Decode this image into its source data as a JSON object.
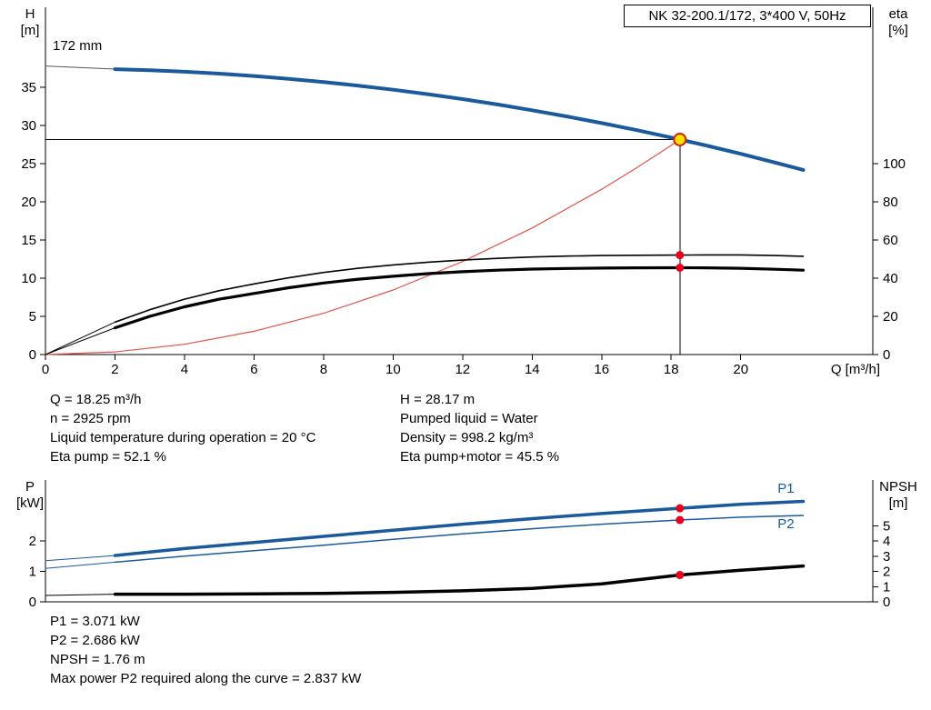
{
  "title_box": "NK 32-200.1/172, 3*400 V, 50Hz",
  "colors": {
    "blue": "#1a5a9c",
    "red_curve": "#e05548",
    "red_dot": "#e8001c",
    "yellow": "#ffe000",
    "op_ring": "#cc2200",
    "black": "#000000",
    "lead_gray": "#555555"
  },
  "chart_data": [
    {
      "id": "qh-eta-chart",
      "type": "line",
      "x_axis": {
        "title": "Q [m³/h]",
        "min": 0,
        "max": 23.8,
        "ticks": [
          0,
          2,
          4,
          6,
          8,
          10,
          12,
          14,
          16,
          18,
          20
        ]
      },
      "left_axis": {
        "title": [
          "H",
          "[m]"
        ],
        "min": 0,
        "max": 45.5,
        "ticks": [
          0,
          5,
          10,
          15,
          20,
          25,
          30,
          35
        ]
      },
      "right_axis": {
        "title": [
          "eta",
          "[%]"
        ],
        "min": 0,
        "max": 182,
        "ticks": [
          0,
          20,
          40,
          60,
          80,
          100
        ]
      },
      "impeller_label": "172 mm",
      "series": [
        {
          "name": "impeller-lead",
          "axis": "left",
          "color": "lead_gray",
          "width": 1,
          "points": [
            [
              0,
              37.8
            ],
            [
              2,
              37.4
            ]
          ]
        },
        {
          "name": "head-curve",
          "axis": "left",
          "color": "blue",
          "width": 4,
          "points": [
            [
              2,
              37.39
            ],
            [
              3,
              37.25
            ],
            [
              4,
              37.05
            ],
            [
              5,
              36.8
            ],
            [
              6,
              36.49
            ],
            [
              7,
              36.13
            ],
            [
              8,
              35.71
            ],
            [
              9,
              35.23
            ],
            [
              10,
              34.7
            ],
            [
              11,
              34.11
            ],
            [
              12,
              33.47
            ],
            [
              13,
              32.77
            ],
            [
              14,
              32.01
            ],
            [
              15,
              31.2
            ],
            [
              16,
              30.33
            ],
            [
              17,
              29.41
            ],
            [
              18,
              28.43
            ],
            [
              18.25,
              28.17
            ],
            [
              19,
              27.39
            ],
            [
              20,
              26.3
            ],
            [
              21,
              25.15
            ],
            [
              21.8,
              24.19
            ]
          ]
        },
        {
          "name": "system-curve",
          "axis": "left",
          "color": "red_curve",
          "width": 1.2,
          "points": [
            [
              0,
              0
            ],
            [
              2,
              0.34
            ],
            [
              4,
              1.35
            ],
            [
              6,
              3.05
            ],
            [
              8,
              5.41
            ],
            [
              10,
              8.46
            ],
            [
              12,
              12.18
            ],
            [
              14,
              16.58
            ],
            [
              16,
              21.65
            ],
            [
              17,
              24.44
            ],
            [
              18,
              27.4
            ],
            [
              18.25,
              28.17
            ]
          ]
        },
        {
          "name": "eta-pump-lead",
          "axis": "right",
          "color": "black",
          "width": 1,
          "points": [
            [
              0,
              0
            ],
            [
              2,
              17
            ]
          ]
        },
        {
          "name": "eta-pump-curve",
          "axis": "right",
          "color": "black",
          "width": 1.6,
          "points": [
            [
              2,
              17
            ],
            [
              3,
              23.5
            ],
            [
              4,
              29
            ],
            [
              5,
              33.5
            ],
            [
              6,
              37
            ],
            [
              7,
              40.2
            ],
            [
              8,
              43
            ],
            [
              9,
              45.2
            ],
            [
              10,
              47
            ],
            [
              11,
              48.4
            ],
            [
              12,
              49.5
            ],
            [
              13,
              50.4
            ],
            [
              14,
              51.1
            ],
            [
              15,
              51.6
            ],
            [
              16,
              51.9
            ],
            [
              17,
              52.05
            ],
            [
              18.25,
              52.1
            ],
            [
              19,
              52.2
            ],
            [
              20,
              52.2
            ],
            [
              21,
              51.9
            ],
            [
              21.8,
              51.5
            ]
          ]
        },
        {
          "name": "eta-pump-motor-lead",
          "axis": "right",
          "color": "black",
          "width": 1,
          "points": [
            [
              0,
              0
            ],
            [
              2,
              14
            ]
          ]
        },
        {
          "name": "eta-pump-motor-curve",
          "axis": "right",
          "color": "black",
          "width": 3.2,
          "points": [
            [
              2,
              14
            ],
            [
              3,
              20
            ],
            [
              4,
              25
            ],
            [
              5,
              29
            ],
            [
              6,
              32
            ],
            [
              7,
              35
            ],
            [
              8,
              37.5
            ],
            [
              9,
              39.5
            ],
            [
              10,
              41
            ],
            [
              11,
              42.4
            ],
            [
              12,
              43.4
            ],
            [
              13,
              44.2
            ],
            [
              14,
              44.8
            ],
            [
              15,
              45.1
            ],
            [
              16,
              45.3
            ],
            [
              17,
              45.45
            ],
            [
              18.25,
              45.5
            ],
            [
              19,
              45.45
            ],
            [
              20,
              45.2
            ],
            [
              21,
              44.7
            ],
            [
              21.8,
              44.2
            ]
          ]
        }
      ],
      "crosshair": {
        "q": 18.25,
        "h": 28.17
      },
      "markers": [
        {
          "type": "dot",
          "q": 18.25,
          "v": 52.1,
          "axis": "right"
        },
        {
          "type": "dot",
          "q": 18.25,
          "v": 45.5,
          "axis": "right"
        },
        {
          "type": "op",
          "q": 18.25,
          "v": 28.17,
          "axis": "left"
        }
      ]
    },
    {
      "id": "power-npsh-chart",
      "type": "line",
      "x_axis": {
        "min": 0,
        "max": 23.8,
        "ticks": []
      },
      "left_axis": {
        "title": [
          "P",
          "[kW]"
        ],
        "min": 0,
        "max": 4,
        "ticks": [
          0,
          1,
          2
        ]
      },
      "right_axis": {
        "title": [
          "NPSH",
          "[m]"
        ],
        "min": 0,
        "max": 8,
        "ticks": [
          0,
          1,
          2,
          3,
          4,
          5
        ]
      },
      "series": [
        {
          "name": "p1-lead",
          "axis": "left",
          "color": "blue",
          "width": 1,
          "points": [
            [
              0,
              1.35
            ],
            [
              2,
              1.52
            ]
          ]
        },
        {
          "name": "p1-curve",
          "axis": "left",
          "color": "blue",
          "width": 3.5,
          "points": [
            [
              2,
              1.52
            ],
            [
              4,
              1.75
            ],
            [
              6,
              1.95
            ],
            [
              8,
              2.15
            ],
            [
              10,
              2.35
            ],
            [
              12,
              2.55
            ],
            [
              14,
              2.73
            ],
            [
              16,
              2.9
            ],
            [
              18.25,
              3.071
            ],
            [
              20,
              3.2
            ],
            [
              21.8,
              3.3
            ]
          ]
        },
        {
          "name": "p2-lead",
          "axis": "left",
          "color": "blue",
          "width": 1,
          "points": [
            [
              0,
              1.1
            ],
            [
              2,
              1.3
            ]
          ]
        },
        {
          "name": "p2-curve",
          "axis": "left",
          "color": "blue",
          "width": 1.5,
          "points": [
            [
              2,
              1.3
            ],
            [
              4,
              1.5
            ],
            [
              6,
              1.68
            ],
            [
              8,
              1.86
            ],
            [
              10,
              2.05
            ],
            [
              12,
              2.23
            ],
            [
              14,
              2.4
            ],
            [
              16,
              2.55
            ],
            [
              18.25,
              2.686
            ],
            [
              20,
              2.78
            ],
            [
              21.8,
              2.837
            ]
          ]
        },
        {
          "name": "npsh-lead",
          "axis": "right",
          "color": "black",
          "width": 1,
          "points": [
            [
              0,
              0.42
            ],
            [
              2,
              0.5
            ]
          ]
        },
        {
          "name": "npsh-curve",
          "axis": "right",
          "color": "black",
          "width": 3.5,
          "points": [
            [
              2,
              0.5
            ],
            [
              4,
              0.5
            ],
            [
              6,
              0.52
            ],
            [
              8,
              0.55
            ],
            [
              10,
              0.62
            ],
            [
              12,
              0.72
            ],
            [
              14,
              0.88
            ],
            [
              16,
              1.18
            ],
            [
              18.25,
              1.76
            ],
            [
              20,
              2.08
            ],
            [
              21.8,
              2.35
            ]
          ]
        }
      ],
      "markers": [
        {
          "type": "dot",
          "q": 18.25,
          "v": 3.071,
          "axis": "left"
        },
        {
          "type": "dot",
          "q": 18.25,
          "v": 2.686,
          "axis": "left"
        },
        {
          "type": "dot",
          "q": 18.25,
          "v": 1.76,
          "axis": "right"
        }
      ],
      "curve_labels": [
        {
          "text": "P1",
          "q": 21.3,
          "v": 3.58,
          "axis": "left",
          "color": "blue"
        },
        {
          "text": "P2",
          "q": 21.3,
          "v": 2.42,
          "axis": "left",
          "color": "blue"
        }
      ]
    }
  ],
  "info_top": {
    "left": [
      "Q = 18.25 m³/h",
      "n = 2925 rpm",
      "Liquid temperature during operation = 20 °C",
      "Eta pump = 52.1 %"
    ],
    "right": [
      "H = 28.17 m",
      "Pumped liquid = Water",
      "Density = 998.2 kg/m³",
      "Eta pump+motor = 45.5 %"
    ]
  },
  "info_bottom": [
    "P1 = 3.071 kW",
    "P2 = 2.686 kW",
    "NPSH = 1.76 m",
    "Max power P2 required along the curve = 2.837 kW"
  ]
}
